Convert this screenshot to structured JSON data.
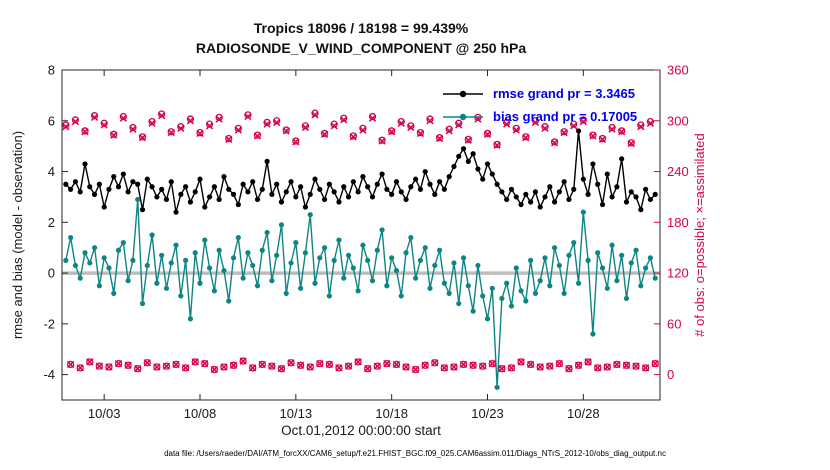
{
  "figure": {
    "title": "Tropics 18096 / 18198 = 99.439%",
    "subtitle": "RADIOSONDE_V_WIND_COMPONENT @ 250 hPa",
    "caption": "data file: /Users/raeder/DAI/ATM_forcXX/CAM6_setup/f.e21.FHIST_BGC.f09_025.CAM6assim.011/Diags_NTrS_2012-10/obs_diag_output.nc"
  },
  "legend": {
    "rmse_label": "rmse grand pr = 3.3465",
    "bias_label": "bias grand pr = 0.17005"
  },
  "colors": {
    "rmse": "#000000",
    "bias": "#0d8585",
    "counts": "#d6004f",
    "legend_text": "#0000ee",
    "zero_line": "#bdbdbd",
    "axis": "#262626"
  },
  "chart_data": {
    "type": "line",
    "title": "Tropics 18096 / 18198 = 99.439%",
    "subtitle": "RADIOSONDE_V_WIND_COMPONENT @ 250 hPa",
    "xlabel": "Oct.01,2012 00:00:00 start",
    "ylabel_left": "rmse and bias (model - observation)",
    "ylabel_right": "# of obs: o=possible; ×=assimilated",
    "grand": {
      "rmse": 3.3465,
      "bias": 0.17005
    },
    "totals": {
      "possible": 18198,
      "assimilated": 18096,
      "percent_assimilated": 99.439
    },
    "axes": {
      "xlim": [
        0.8,
        32
      ],
      "ylim_left": [
        -5,
        8
      ],
      "ylim_right": [
        -30,
        360
      ],
      "yticks_left": [
        -4,
        -2,
        0,
        2,
        4,
        6,
        8
      ],
      "yticks_right": [
        0,
        60,
        120,
        180,
        240,
        300,
        360
      ],
      "xticks": [
        {
          "day": 3,
          "label": "10/03"
        },
        {
          "day": 8,
          "label": "10/08"
        },
        {
          "day": 13,
          "label": "10/13"
        },
        {
          "day": 18,
          "label": "10/18"
        },
        {
          "day": 23,
          "label": "10/23"
        },
        {
          "day": 28,
          "label": "10/28"
        }
      ],
      "grid": false,
      "legend_position": "top-right-inside"
    },
    "x_days": [
      1,
      1.25,
      1.5,
      1.75,
      2,
      2.25,
      2.5,
      2.75,
      3,
      3.25,
      3.5,
      3.75,
      4,
      4.25,
      4.5,
      4.75,
      5,
      5.25,
      5.5,
      5.75,
      6,
      6.25,
      6.5,
      6.75,
      7,
      7.25,
      7.5,
      7.75,
      8,
      8.25,
      8.5,
      8.75,
      9,
      9.25,
      9.5,
      9.75,
      10,
      10.25,
      10.5,
      10.75,
      11,
      11.25,
      11.5,
      11.75,
      12,
      12.25,
      12.5,
      12.75,
      13,
      13.25,
      13.5,
      13.75,
      14,
      14.25,
      14.5,
      14.75,
      15,
      15.25,
      15.5,
      15.75,
      16,
      16.25,
      16.5,
      16.75,
      17,
      17.25,
      17.5,
      17.75,
      18,
      18.25,
      18.5,
      18.75,
      19,
      19.25,
      19.5,
      19.75,
      20,
      20.25,
      20.5,
      20.75,
      21,
      21.25,
      21.5,
      21.75,
      22,
      22.25,
      22.5,
      22.75,
      23,
      23.25,
      23.5,
      23.75,
      24,
      24.25,
      24.5,
      24.75,
      25,
      25.25,
      25.5,
      25.75,
      26,
      26.25,
      26.5,
      26.75,
      27,
      27.25,
      27.5,
      27.75,
      28,
      28.25,
      28.5,
      28.75,
      29,
      29.25,
      29.5,
      29.75,
      30,
      30.25,
      30.5,
      30.75,
      31,
      31.25,
      31.5,
      31.75
    ],
    "series": [
      {
        "name": "rmse",
        "color_key": "rmse",
        "values": [
          3.5,
          3.3,
          3.6,
          3.2,
          4.3,
          3.4,
          3.1,
          3.5,
          2.6,
          3.3,
          3.8,
          3.4,
          3.9,
          3.2,
          3.6,
          3.5,
          2.5,
          3.7,
          3.4,
          3.0,
          3.3,
          2.9,
          3.6,
          2.4,
          3.1,
          3.4,
          2.8,
          3.2,
          3.7,
          2.6,
          3.0,
          3.4,
          2.9,
          3.8,
          3.3,
          3.1,
          2.7,
          3.5,
          3.2,
          3.6,
          2.9,
          3.3,
          4.4,
          3.1,
          3.5,
          2.8,
          3.2,
          3.6,
          3.0,
          3.4,
          2.6,
          3.1,
          3.7,
          3.3,
          2.9,
          3.5,
          3.2,
          2.8,
          3.4,
          3.0,
          3.6,
          3.2,
          3.8,
          3.4,
          3.0,
          3.5,
          3.9,
          3.3,
          3.1,
          3.6,
          3.2,
          2.9,
          3.4,
          3.7,
          3.3,
          4.0,
          3.5,
          3.1,
          3.6,
          3.3,
          3.8,
          4.2,
          4.6,
          4.9,
          4.4,
          4.7,
          4.1,
          3.7,
          4.3,
          3.9,
          3.5,
          3.2,
          2.9,
          3.3,
          3.0,
          2.7,
          3.1,
          2.8,
          3.2,
          2.6,
          3.0,
          3.4,
          2.8,
          3.2,
          3.6,
          2.9,
          3.3,
          5.6,
          3.7,
          3.1,
          4.3,
          3.5,
          2.7,
          3.9,
          3.0,
          3.4,
          4.5,
          2.8,
          3.2,
          3.0,
          2.5,
          3.3,
          2.9,
          3.1
        ]
      },
      {
        "name": "bias",
        "color_key": "bias",
        "values": [
          0.5,
          1.4,
          0.3,
          -0.2,
          0.8,
          0.4,
          1.0,
          -0.5,
          0.6,
          0.2,
          -0.8,
          0.9,
          1.2,
          -0.3,
          0.5,
          2.9,
          -1.2,
          0.3,
          1.5,
          -0.4,
          0.7,
          -0.6,
          0.4,
          1.1,
          -0.9,
          0.5,
          -1.8,
          0.8,
          -0.4,
          1.3,
          0.2,
          -0.7,
          0.9,
          0.1,
          -1.1,
          0.6,
          1.4,
          -0.2,
          0.8,
          0.3,
          -0.5,
          0.9,
          1.6,
          -0.3,
          0.7,
          1.9,
          -0.8,
          0.4,
          1.2,
          -0.6,
          0.8,
          2.3,
          -0.4,
          0.6,
          1.0,
          -0.9,
          0.5,
          1.3,
          -0.2,
          0.7,
          0.2,
          -0.7,
          1.1,
          0.5,
          -0.3,
          0.9,
          1.7,
          -0.5,
          0.6,
          0.1,
          -0.9,
          0.8,
          1.4,
          -0.2,
          0.5,
          1.0,
          -0.6,
          0.3,
          0.9,
          -0.4,
          -0.8,
          0.4,
          -1.2,
          0.6,
          -0.5,
          -1.5,
          0.3,
          -0.9,
          -1.8,
          -0.6,
          -4.5,
          -1.0,
          -0.4,
          -1.3,
          0.2,
          -0.7,
          -1.1,
          0.5,
          -0.8,
          -0.3,
          0.6,
          -0.5,
          1.0,
          0.3,
          -0.8,
          0.7,
          1.2,
          -0.4,
          2.4,
          0.5,
          -2.4,
          0.8,
          0.2,
          -0.6,
          1.1,
          -0.3,
          0.7,
          -1.0,
          0.4,
          0.9,
          -0.5,
          0.2,
          0.6,
          -0.2
        ]
      }
    ],
    "counts": {
      "possible_marker": "o",
      "assimilated_marker": "×",
      "possible": [
        295,
        12,
        301,
        8,
        288,
        15,
        306,
        10,
        297,
        9,
        284,
        13,
        305,
        11,
        292,
        7,
        281,
        14,
        299,
        9,
        308,
        10,
        287,
        12,
        293,
        8,
        302,
        15,
        286,
        13,
        296,
        6,
        304,
        9,
        279,
        11,
        291,
        16,
        307,
        8,
        283,
        12,
        298,
        10,
        300,
        7,
        289,
        14,
        276,
        11,
        294,
        9,
        309,
        13,
        285,
        12,
        296,
        8,
        303,
        10,
        282,
        15,
        291,
        7,
        305,
        10,
        277,
        13,
        288,
        12,
        299,
        9,
        294,
        6,
        286,
        11,
        302,
        14,
        280,
        8,
        290,
        9,
        297,
        12,
        278,
        11,
        304,
        10,
        285,
        13,
        272,
        7,
        298,
        8,
        291,
        15,
        281,
        12,
        300,
        9,
        293,
        10,
        275,
        13,
        287,
        7,
        296,
        11,
        301,
        15,
        283,
        8,
        279,
        9,
        292,
        12,
        288,
        11,
        274,
        10,
        295,
        8,
        299,
        13
      ],
      "assimilated": [
        293,
        12,
        299,
        8,
        287,
        15,
        304,
        10,
        295,
        9,
        283,
        13,
        303,
        11,
        290,
        7,
        280,
        14,
        297,
        9,
        306,
        10,
        286,
        12,
        291,
        8,
        300,
        15,
        285,
        13,
        294,
        6,
        302,
        9,
        278,
        11,
        289,
        16,
        305,
        8,
        282,
        12,
        296,
        10,
        298,
        7,
        288,
        14,
        275,
        11,
        292,
        9,
        307,
        13,
        284,
        12,
        294,
        8,
        301,
        10,
        281,
        15,
        289,
        7,
        303,
        10,
        276,
        13,
        287,
        12,
        297,
        9,
        292,
        6,
        285,
        11,
        300,
        14,
        279,
        8,
        288,
        9,
        295,
        12,
        277,
        11,
        302,
        10,
        284,
        13,
        271,
        7,
        296,
        8,
        289,
        15,
        280,
        12,
        298,
        9,
        291,
        10,
        274,
        13,
        286,
        7,
        294,
        11,
        299,
        15,
        282,
        8,
        278,
        9,
        290,
        12,
        287,
        11,
        273,
        10,
        293,
        8,
        297,
        13
      ]
    }
  }
}
